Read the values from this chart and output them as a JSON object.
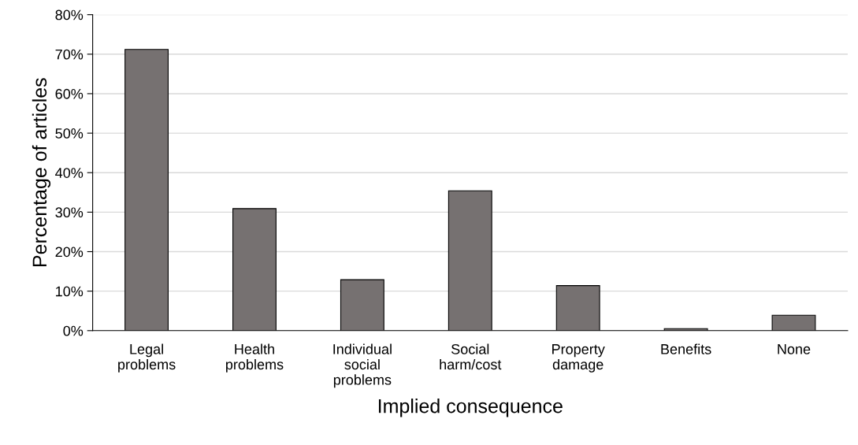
{
  "chart_data": {
    "type": "bar",
    "xlabel": "Implied consequence",
    "ylabel": "Percentage of articles",
    "categories": [
      "Legal\nproblems",
      "Health\nproblems",
      "Individual\nsocial\nproblems",
      "Social\nharm/cost",
      "Property\ndamage",
      "Benefits",
      "None"
    ],
    "values": [
      71.2,
      30.9,
      12.9,
      35.4,
      11.4,
      0.5,
      3.9
    ],
    "color": "#767171",
    "ylim": [
      0,
      80
    ],
    "yticks": [
      {
        "value": 0,
        "label": "0%"
      },
      {
        "value": 10,
        "label": "10%"
      },
      {
        "value": 20,
        "label": "20%"
      },
      {
        "value": 30,
        "label": "30%"
      },
      {
        "value": 40,
        "label": "40%"
      },
      {
        "value": 50,
        "label": "50%"
      },
      {
        "value": 60,
        "label": "60%"
      },
      {
        "value": 70,
        "label": "70%"
      },
      {
        "value": 80,
        "label": "80%"
      }
    ],
    "grid": "y"
  }
}
